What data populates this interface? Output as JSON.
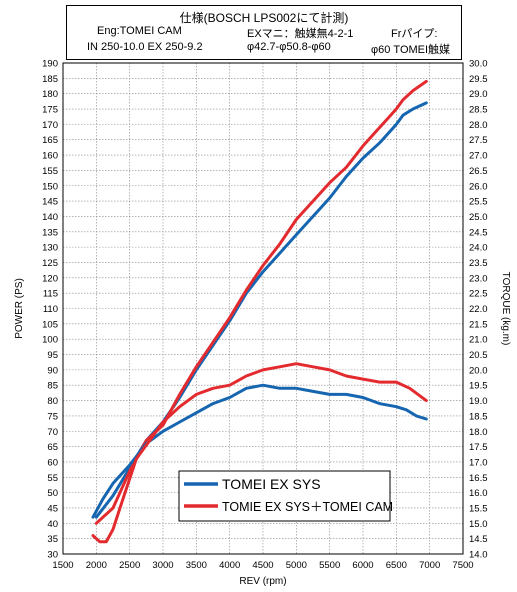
{
  "spec": {
    "title": "仕様(BOSCH LPS002にて計測)",
    "eng_label": "Eng:TOMEI CAM",
    "eng_value": "IN 250-10.0 EX 250-9.2",
    "ex_label": "EXマニ：触媒無4-2-1",
    "ex_value": "φ42.7-φ50.8-φ60",
    "fr_label": "Frパイプ:",
    "fr_value": "φ60 TOMEI触媒"
  },
  "chart_data": {
    "type": "line",
    "xlabel": "REV (rpm)",
    "ylabel_left": "POWER (PS)",
    "ylabel_right": "TORQUE (kg.m)",
    "xlim": [
      1500,
      7500
    ],
    "ylim_left": [
      30,
      190
    ],
    "ylim_right": [
      14.0,
      30.0
    ],
    "x_ticks": [
      1500,
      2000,
      2500,
      3000,
      3500,
      4000,
      4500,
      5000,
      5500,
      6000,
      6500,
      7000,
      7500
    ],
    "y_ticks_left": [
      30,
      35,
      40,
      45,
      50,
      55,
      60,
      65,
      70,
      75,
      80,
      85,
      90,
      95,
      100,
      105,
      110,
      115,
      120,
      125,
      130,
      135,
      140,
      145,
      150,
      155,
      160,
      165,
      170,
      175,
      180,
      185,
      190
    ],
    "y_ticks_right": [
      "14.0",
      "14.5",
      "15.0",
      "15.5",
      "16.0",
      "16.5",
      "17.0",
      "17.5",
      "18.0",
      "18.5",
      "19.0",
      "19.5",
      "20.0",
      "20.5",
      "21.0",
      "21.5",
      "22.0",
      "22.5",
      "23.0",
      "23.5",
      "24.0",
      "24.5",
      "25.0",
      "25.5",
      "26.0",
      "26.5",
      "27.0",
      "27.5",
      "28.0",
      "28.5",
      "29.0",
      "29.5",
      "30.0"
    ],
    "grid": true,
    "legend_position": "bottom-right",
    "series": [
      {
        "name": "TOMEI EX SYS",
        "axis": "left",
        "color": "#1565b0",
        "x": [
          2000,
          2250,
          2500,
          2750,
          3000,
          3250,
          3500,
          3750,
          4000,
          4250,
          4500,
          4750,
          5000,
          5250,
          5500,
          5750,
          6000,
          6250,
          6500,
          6600,
          6750,
          6950
        ],
        "y": [
          42,
          49,
          58,
          67,
          73,
          81,
          90,
          98,
          106,
          115,
          122,
          128,
          134,
          140,
          146,
          153,
          159,
          164,
          170,
          173,
          175,
          177
        ]
      },
      {
        "name": "TOMIE EX SYS＋TOMEI CAM",
        "axis": "left",
        "color": "#e32b2f",
        "x": [
          2000,
          2250,
          2500,
          2750,
          3000,
          3250,
          3500,
          3750,
          4000,
          4250,
          4500,
          4750,
          5000,
          5250,
          5500,
          5750,
          6000,
          6250,
          6500,
          6600,
          6750,
          6950
        ],
        "y": [
          40,
          45,
          57,
          67,
          72,
          82,
          91,
          99,
          107,
          116,
          124,
          131,
          139,
          145,
          151,
          156,
          163,
          169,
          175,
          178,
          181,
          184
        ]
      },
      {
        "name": "TOMEI EX SYS (torque)",
        "axis": "right",
        "color": "#1565b0",
        "x": [
          1950,
          2100,
          2250,
          2500,
          2750,
          3000,
          3250,
          3500,
          3750,
          4000,
          4250,
          4500,
          4750,
          5000,
          5250,
          5500,
          5750,
          6000,
          6250,
          6500,
          6650,
          6800,
          6950
        ],
        "y": [
          15.2,
          15.8,
          16.3,
          16.9,
          17.6,
          18.0,
          18.3,
          18.6,
          18.9,
          19.1,
          19.4,
          19.5,
          19.4,
          19.4,
          19.3,
          19.2,
          19.2,
          19.1,
          18.9,
          18.8,
          18.7,
          18.5,
          18.4
        ]
      },
      {
        "name": "TOMIE EX SYS＋TOMEI CAM (torque)",
        "axis": "right",
        "color": "#e32b2f",
        "x": [
          1950,
          2050,
          2150,
          2250,
          2400,
          2600,
          2800,
          3000,
          3250,
          3500,
          3750,
          4000,
          4250,
          4500,
          4750,
          5000,
          5250,
          5500,
          5750,
          6000,
          6250,
          6500,
          6700,
          6950
        ],
        "y": [
          14.6,
          14.4,
          14.4,
          14.8,
          15.8,
          17.1,
          17.7,
          18.3,
          18.8,
          19.2,
          19.4,
          19.5,
          19.8,
          20.0,
          20.1,
          20.2,
          20.1,
          20.0,
          19.8,
          19.7,
          19.6,
          19.6,
          19.4,
          19.0
        ]
      }
    ]
  }
}
